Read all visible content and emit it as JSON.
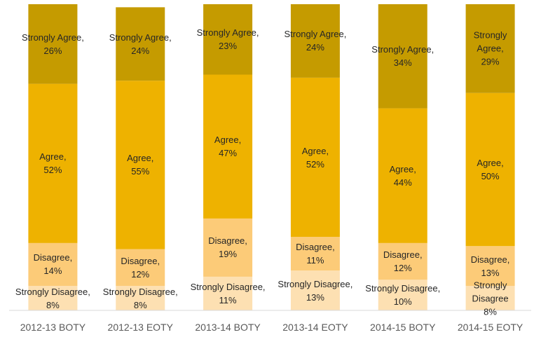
{
  "chart_data": {
    "type": "stacked_bar",
    "categories": [
      "2012-13 BOTY",
      "2012-13 EOTY",
      "2013-14 BOTY",
      "2013-14 EOTY",
      "2014-15 BOTY",
      "2014-15 EOTY"
    ],
    "series": [
      {
        "color": "#fde0b2",
        "values": [
          8,
          8,
          11,
          13,
          10,
          8
        ],
        "value_labels": [
          "Strongly Disagree,\n8%",
          "Strongly Disagree,\n8%",
          "Strongly Disagree,\n11%",
          "Strongly Disagree,\n13%",
          "Strongly Disagree,\n10%",
          "Strongly Disagree\n8%"
        ]
      },
      {
        "color": "#fccb78",
        "values": [
          14,
          12,
          19,
          11,
          12,
          13
        ],
        "value_labels": [
          "Disagree,\n14%",
          "Disagree,\n12%",
          "Disagree,\n19%",
          "Disagree,\n11%",
          "Disagree,\n12%",
          "Disagree,\n13%"
        ]
      },
      {
        "color": "#eeb200",
        "values": [
          52,
          55,
          47,
          52,
          44,
          50
        ],
        "value_labels": [
          "Agree,\n52%",
          "Agree,\n55%",
          "Agree,\n47%",
          "Agree,\n52%",
          "Agree,\n44%",
          "Agree,\n50%"
        ]
      },
      {
        "color": "#c59b00",
        "values": [
          26,
          24,
          23,
          24,
          34,
          29
        ],
        "value_labels": [
          "Strongly Agree,\n26%",
          "Strongly Agree,\n24%",
          "Strongly Agree,\n23%",
          "Strongly Agree,\n24%",
          "Strongly Agree,\n34%",
          "Strongly Agree,\n29%"
        ]
      }
    ],
    "ylim": [
      0,
      100
    ]
  }
}
